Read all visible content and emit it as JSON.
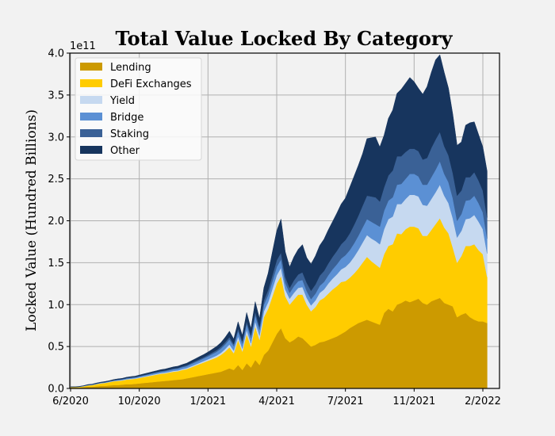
{
  "chart_data": {
    "type": "area",
    "stacked": true,
    "title": "Total Value Locked By Category",
    "xlabel": "",
    "ylabel": "Locked Value (Hundred Billions)",
    "y_offset_label": "1e11",
    "ylim": [
      0,
      4.0
    ],
    "y_ticks": [
      0.0,
      0.5,
      1.0,
      1.5,
      2.0,
      2.5,
      3.0,
      3.5,
      4.0
    ],
    "y_tick_labels": [
      "0.0",
      "0.5",
      "1.0",
      "1.5",
      "2.0",
      "2.5",
      "3.0",
      "3.5",
      "4.0"
    ],
    "x_tick_labels": [
      "6/2020",
      "10/2020",
      "1/2021",
      "4/2021",
      "7/2021",
      "11/2021",
      "2/2022"
    ],
    "x_tick_index": [
      0,
      16,
      32,
      48,
      64,
      80,
      96
    ],
    "grid": true,
    "legend_position": "top-left",
    "units": "x 1e11 USD",
    "series": [
      {
        "name": "Lending",
        "color": "#cc9a00",
        "values": [
          0.01,
          0.01,
          0.01,
          0.015,
          0.02,
          0.02,
          0.025,
          0.03,
          0.03,
          0.035,
          0.04,
          0.04,
          0.045,
          0.05,
          0.05,
          0.055,
          0.06,
          0.065,
          0.07,
          0.075,
          0.08,
          0.085,
          0.09,
          0.095,
          0.1,
          0.105,
          0.11,
          0.12,
          0.13,
          0.14,
          0.15,
          0.16,
          0.17,
          0.18,
          0.19,
          0.2,
          0.22,
          0.24,
          0.22,
          0.28,
          0.22,
          0.3,
          0.25,
          0.34,
          0.28,
          0.4,
          0.45,
          0.55,
          0.65,
          0.72,
          0.6,
          0.55,
          0.58,
          0.62,
          0.6,
          0.55,
          0.5,
          0.52,
          0.55,
          0.56,
          0.58,
          0.6,
          0.62,
          0.65,
          0.68,
          0.72,
          0.75,
          0.78,
          0.8,
          0.82,
          0.8,
          0.78,
          0.76,
          0.9,
          0.95,
          0.92,
          1.0,
          1.02,
          1.05,
          1.03,
          1.05,
          1.07,
          1.02,
          1.0,
          1.04,
          1.06,
          1.08,
          1.02,
          1.0,
          0.98,
          0.85,
          0.88,
          0.9,
          0.85,
          0.82,
          0.8,
          0.8,
          0.78
        ]
      },
      {
        "name": "DeFi Exchanges",
        "color": "#ffcc00",
        "values": [
          0.005,
          0.006,
          0.008,
          0.01,
          0.015,
          0.02,
          0.025,
          0.03,
          0.035,
          0.04,
          0.045,
          0.05,
          0.05,
          0.055,
          0.06,
          0.06,
          0.065,
          0.07,
          0.075,
          0.08,
          0.085,
          0.09,
          0.09,
          0.095,
          0.1,
          0.1,
          0.11,
          0.11,
          0.12,
          0.13,
          0.14,
          0.15,
          0.16,
          0.17,
          0.18,
          0.2,
          0.22,
          0.25,
          0.2,
          0.3,
          0.22,
          0.35,
          0.25,
          0.4,
          0.3,
          0.45,
          0.5,
          0.55,
          0.6,
          0.62,
          0.5,
          0.45,
          0.48,
          0.5,
          0.52,
          0.45,
          0.42,
          0.45,
          0.5,
          0.52,
          0.55,
          0.58,
          0.6,
          0.62,
          0.6,
          0.6,
          0.62,
          0.65,
          0.7,
          0.75,
          0.72,
          0.7,
          0.68,
          0.7,
          0.75,
          0.8,
          0.85,
          0.82,
          0.85,
          0.9,
          0.88,
          0.84,
          0.8,
          0.82,
          0.85,
          0.9,
          0.95,
          0.9,
          0.85,
          0.7,
          0.65,
          0.7,
          0.8,
          0.85,
          0.9,
          0.85,
          0.8,
          0.55
        ]
      },
      {
        "name": "Yield",
        "color": "#c6d9f0",
        "values": [
          0.001,
          0.001,
          0.001,
          0.002,
          0.002,
          0.002,
          0.003,
          0.003,
          0.003,
          0.004,
          0.004,
          0.005,
          0.005,
          0.005,
          0.006,
          0.006,
          0.006,
          0.007,
          0.007,
          0.008,
          0.008,
          0.008,
          0.009,
          0.009,
          0.01,
          0.01,
          0.011,
          0.012,
          0.013,
          0.014,
          0.015,
          0.016,
          0.018,
          0.02,
          0.022,
          0.025,
          0.03,
          0.035,
          0.03,
          0.04,
          0.035,
          0.05,
          0.04,
          0.06,
          0.05,
          0.07,
          0.08,
          0.09,
          0.1,
          0.1,
          0.08,
          0.07,
          0.08,
          0.08,
          0.09,
          0.08,
          0.07,
          0.08,
          0.09,
          0.1,
          0.12,
          0.13,
          0.14,
          0.15,
          0.17,
          0.18,
          0.2,
          0.22,
          0.24,
          0.26,
          0.27,
          0.28,
          0.28,
          0.3,
          0.32,
          0.33,
          0.35,
          0.36,
          0.36,
          0.38,
          0.38,
          0.38,
          0.37,
          0.36,
          0.37,
          0.38,
          0.4,
          0.38,
          0.36,
          0.35,
          0.3,
          0.3,
          0.32,
          0.33,
          0.35,
          0.34,
          0.3,
          0.28
        ]
      },
      {
        "name": "Bridge",
        "color": "#5b90d4",
        "values": [
          0.001,
          0.001,
          0.002,
          0.002,
          0.003,
          0.003,
          0.004,
          0.004,
          0.005,
          0.005,
          0.006,
          0.007,
          0.008,
          0.009,
          0.01,
          0.011,
          0.012,
          0.013,
          0.014,
          0.015,
          0.016,
          0.017,
          0.018,
          0.019,
          0.02,
          0.021,
          0.022,
          0.024,
          0.026,
          0.028,
          0.03,
          0.032,
          0.035,
          0.04,
          0.045,
          0.05,
          0.055,
          0.06,
          0.055,
          0.065,
          0.06,
          0.07,
          0.065,
          0.075,
          0.07,
          0.08,
          0.085,
          0.09,
          0.1,
          0.1,
          0.08,
          0.07,
          0.08,
          0.08,
          0.085,
          0.08,
          0.075,
          0.08,
          0.085,
          0.09,
          0.1,
          0.11,
          0.12,
          0.13,
          0.14,
          0.15,
          0.16,
          0.17,
          0.18,
          0.19,
          0.2,
          0.2,
          0.21,
          0.22,
          0.22,
          0.23,
          0.23,
          0.24,
          0.24,
          0.25,
          0.25,
          0.24,
          0.24,
          0.25,
          0.26,
          0.27,
          0.28,
          0.26,
          0.25,
          0.24,
          0.2,
          0.2,
          0.22,
          0.22,
          0.23,
          0.22,
          0.2,
          0.18
        ]
      },
      {
        "name": "Staking",
        "color": "#3a6196",
        "values": [
          0.001,
          0.001,
          0.001,
          0.001,
          0.002,
          0.002,
          0.002,
          0.003,
          0.003,
          0.003,
          0.004,
          0.004,
          0.004,
          0.005,
          0.005,
          0.005,
          0.006,
          0.006,
          0.006,
          0.007,
          0.007,
          0.008,
          0.008,
          0.009,
          0.009,
          0.01,
          0.01,
          0.011,
          0.012,
          0.013,
          0.014,
          0.015,
          0.016,
          0.018,
          0.02,
          0.022,
          0.025,
          0.028,
          0.025,
          0.03,
          0.028,
          0.035,
          0.03,
          0.04,
          0.035,
          0.05,
          0.06,
          0.07,
          0.08,
          0.08,
          0.07,
          0.06,
          0.07,
          0.08,
          0.09,
          0.1,
          0.1,
          0.11,
          0.12,
          0.13,
          0.14,
          0.15,
          0.16,
          0.17,
          0.18,
          0.2,
          0.22,
          0.24,
          0.26,
          0.28,
          0.3,
          0.32,
          0.3,
          0.28,
          0.3,
          0.32,
          0.34,
          0.33,
          0.32,
          0.3,
          0.3,
          0.3,
          0.3,
          0.32,
          0.35,
          0.36,
          0.35,
          0.33,
          0.32,
          0.3,
          0.3,
          0.28,
          0.28,
          0.27,
          0.28,
          0.27,
          0.26,
          0.25
        ]
      },
      {
        "name": "Other",
        "color": "#17355e",
        "values": [
          0.002,
          0.002,
          0.003,
          0.003,
          0.004,
          0.004,
          0.005,
          0.005,
          0.006,
          0.006,
          0.007,
          0.008,
          0.008,
          0.009,
          0.01,
          0.01,
          0.011,
          0.012,
          0.013,
          0.014,
          0.015,
          0.016,
          0.017,
          0.018,
          0.019,
          0.02,
          0.022,
          0.024,
          0.026,
          0.028,
          0.03,
          0.032,
          0.035,
          0.04,
          0.045,
          0.05,
          0.06,
          0.07,
          0.06,
          0.08,
          0.07,
          0.1,
          0.08,
          0.12,
          0.1,
          0.15,
          0.2,
          0.28,
          0.35,
          0.4,
          0.3,
          0.25,
          0.28,
          0.3,
          0.33,
          0.3,
          0.32,
          0.34,
          0.36,
          0.38,
          0.4,
          0.42,
          0.45,
          0.48,
          0.5,
          0.55,
          0.58,
          0.6,
          0.62,
          0.68,
          0.7,
          0.72,
          0.65,
          0.62,
          0.68,
          0.72,
          0.75,
          0.8,
          0.82,
          0.85,
          0.8,
          0.75,
          0.78,
          0.85,
          0.9,
          0.95,
          0.92,
          0.88,
          0.8,
          0.7,
          0.6,
          0.58,
          0.62,
          0.65,
          0.6,
          0.55,
          0.52,
          0.55
        ]
      }
    ]
  }
}
